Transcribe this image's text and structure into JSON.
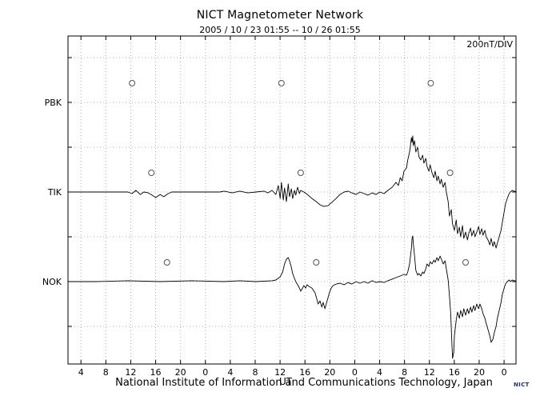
{
  "footer": {
    "credit": "National Institute of Information and Communications Technology, Japan",
    "logo_text": "NICT"
  },
  "chart_data": {
    "type": "line",
    "title": "NICT Magnetometer Network",
    "time_window": "2005 / 10 / 23  01:55 -- 10 / 26  01:55",
    "scale_label": "200nT/DIV",
    "division_nT": 200,
    "units": "nT",
    "grid": "dotted",
    "x_axis": {
      "label": "UT",
      "span_hours": 72,
      "first_tick_hour_offset": 2.083,
      "tick_interval_hours": 4,
      "tick_labels": [
        "4",
        "8",
        "12",
        "16",
        "20",
        "0",
        "4",
        "8",
        "12",
        "16",
        "20",
        "0",
        "4",
        "8",
        "12",
        "16",
        "20",
        "0"
      ]
    },
    "stations": [
      {
        "label": "PBK",
        "circle_marker_hours": [
          10.3,
          34.3,
          58.3
        ],
        "points": []
      },
      {
        "label": "TIK",
        "circle_marker_hours": [
          13.4,
          37.4,
          61.4
        ],
        "points": [
          [
            0,
            0
          ],
          [
            9.6,
            0
          ],
          [
            10.3,
            -7
          ],
          [
            10.9,
            7
          ],
          [
            11.6,
            -11
          ],
          [
            12.2,
            0
          ],
          [
            12.9,
            -4
          ],
          [
            13.5,
            -14
          ],
          [
            14.1,
            -25
          ],
          [
            14.8,
            -11
          ],
          [
            15.4,
            -21
          ],
          [
            16.1,
            -7
          ],
          [
            16.7,
            0
          ],
          [
            24.4,
            0
          ],
          [
            25.1,
            4
          ],
          [
            26.4,
            -4
          ],
          [
            27.6,
            4
          ],
          [
            28.9,
            -4
          ],
          [
            30.2,
            0
          ],
          [
            31.5,
            4
          ],
          [
            32.1,
            -4
          ],
          [
            32.8,
            7
          ],
          [
            33.4,
            -11
          ],
          [
            33.8,
            29
          ],
          [
            34.1,
            -29
          ],
          [
            34.3,
            43
          ],
          [
            34.6,
            -36
          ],
          [
            34.8,
            18
          ],
          [
            35.1,
            -43
          ],
          [
            35.4,
            36
          ],
          [
            35.6,
            -21
          ],
          [
            35.9,
            14
          ],
          [
            36.1,
            -29
          ],
          [
            36.4,
            7
          ],
          [
            36.6,
            -14
          ],
          [
            36.9,
            21
          ],
          [
            37.2,
            -7
          ],
          [
            37.4,
            7
          ],
          [
            37.9,
            0
          ],
          [
            38.6,
            -14
          ],
          [
            39.2,
            -29
          ],
          [
            39.9,
            -43
          ],
          [
            40.5,
            -57
          ],
          [
            41.1,
            -64
          ],
          [
            41.8,
            -61
          ],
          [
            42.4,
            -46
          ],
          [
            43.1,
            -29
          ],
          [
            43.7,
            -11
          ],
          [
            44.4,
            0
          ],
          [
            45,
            4
          ],
          [
            45.6,
            -4
          ],
          [
            46.3,
            -11
          ],
          [
            46.9,
            0
          ],
          [
            47.6,
            -7
          ],
          [
            48.2,
            -14
          ],
          [
            48.9,
            -4
          ],
          [
            49.5,
            -11
          ],
          [
            50.1,
            0
          ],
          [
            50.8,
            -7
          ],
          [
            51.4,
            7
          ],
          [
            52.1,
            21
          ],
          [
            52.7,
            43
          ],
          [
            53.1,
            29
          ],
          [
            53.4,
            64
          ],
          [
            53.7,
            50
          ],
          [
            54,
            93
          ],
          [
            54.4,
            107
          ],
          [
            54.6,
            143
          ],
          [
            54.9,
            179
          ],
          [
            55.2,
            243
          ],
          [
            55.3,
            221
          ],
          [
            55.4,
            250
          ],
          [
            55.5,
            207
          ],
          [
            55.7,
            229
          ],
          [
            55.9,
            179
          ],
          [
            56.2,
            200
          ],
          [
            56.4,
            157
          ],
          [
            56.7,
            143
          ],
          [
            57,
            164
          ],
          [
            57.2,
            129
          ],
          [
            57.5,
            150
          ],
          [
            57.7,
            114
          ],
          [
            58,
            93
          ],
          [
            58.2,
            121
          ],
          [
            58.5,
            86
          ],
          [
            58.8,
            64
          ],
          [
            59,
            93
          ],
          [
            59.3,
            50
          ],
          [
            59.5,
            71
          ],
          [
            59.8,
            36
          ],
          [
            60,
            57
          ],
          [
            60.3,
            21
          ],
          [
            60.6,
            43
          ],
          [
            60.8,
            0
          ],
          [
            61.1,
            -43
          ],
          [
            61.3,
            -107
          ],
          [
            61.6,
            -79
          ],
          [
            61.8,
            -143
          ],
          [
            62.1,
            -171
          ],
          [
            62.4,
            -125
          ],
          [
            62.6,
            -186
          ],
          [
            62.9,
            -157
          ],
          [
            63.1,
            -200
          ],
          [
            63.4,
            -150
          ],
          [
            63.6,
            -207
          ],
          [
            63.9,
            -179
          ],
          [
            64.2,
            -214
          ],
          [
            64.4,
            -186
          ],
          [
            64.7,
            -161
          ],
          [
            64.9,
            -196
          ],
          [
            65.2,
            -171
          ],
          [
            65.4,
            -200
          ],
          [
            65.7,
            -179
          ],
          [
            66,
            -154
          ],
          [
            66.2,
            -189
          ],
          [
            66.5,
            -164
          ],
          [
            66.7,
            -193
          ],
          [
            67,
            -171
          ],
          [
            67.2,
            -200
          ],
          [
            67.5,
            -214
          ],
          [
            67.8,
            -236
          ],
          [
            68,
            -207
          ],
          [
            68.3,
            -243
          ],
          [
            68.5,
            -221
          ],
          [
            68.8,
            -250
          ],
          [
            69,
            -229
          ],
          [
            69.3,
            -200
          ],
          [
            69.6,
            -171
          ],
          [
            69.8,
            -136
          ],
          [
            70.1,
            -89
          ],
          [
            70.3,
            -54
          ],
          [
            70.6,
            -29
          ],
          [
            70.9,
            -7
          ],
          [
            71.1,
            0
          ],
          [
            71.4,
            7
          ],
          [
            71.7,
            4
          ],
          [
            72,
            2
          ]
        ]
      },
      {
        "label": "NOK",
        "circle_marker_hours": [
          15.9,
          39.9,
          63.9
        ],
        "points": [
          [
            0,
            0
          ],
          [
            4.5,
            0
          ],
          [
            9.6,
            4
          ],
          [
            14.8,
            0
          ],
          [
            19.9,
            4
          ],
          [
            25.1,
            0
          ],
          [
            27.6,
            4
          ],
          [
            30.2,
            0
          ],
          [
            32.8,
            4
          ],
          [
            33.4,
            7
          ],
          [
            34.1,
            21
          ],
          [
            34.5,
            43
          ],
          [
            34.8,
            79
          ],
          [
            35.1,
            100
          ],
          [
            35.4,
            107
          ],
          [
            35.6,
            93
          ],
          [
            35.9,
            64
          ],
          [
            36.1,
            36
          ],
          [
            36.4,
            14
          ],
          [
            36.6,
            0
          ],
          [
            36.9,
            -14
          ],
          [
            37.2,
            -29
          ],
          [
            37.4,
            -43
          ],
          [
            37.7,
            -29
          ],
          [
            37.9,
            -18
          ],
          [
            38.2,
            -29
          ],
          [
            38.4,
            -14
          ],
          [
            38.7,
            -21
          ],
          [
            39.2,
            -29
          ],
          [
            39.7,
            -50
          ],
          [
            40,
            -79
          ],
          [
            40.2,
            -100
          ],
          [
            40.5,
            -86
          ],
          [
            40.8,
            -114
          ],
          [
            41,
            -93
          ],
          [
            41.3,
            -121
          ],
          [
            41.5,
            -100
          ],
          [
            41.8,
            -71
          ],
          [
            42,
            -50
          ],
          [
            42.3,
            -29
          ],
          [
            42.6,
            -18
          ],
          [
            43.1,
            -11
          ],
          [
            43.7,
            -7
          ],
          [
            44.4,
            -14
          ],
          [
            45,
            -4
          ],
          [
            45.6,
            -11
          ],
          [
            46.3,
            0
          ],
          [
            46.9,
            -7
          ],
          [
            47.6,
            0
          ],
          [
            48.2,
            -7
          ],
          [
            48.9,
            4
          ],
          [
            49.5,
            -4
          ],
          [
            50.1,
            0
          ],
          [
            50.8,
            -4
          ],
          [
            51.4,
            4
          ],
          [
            52.1,
            11
          ],
          [
            52.7,
            18
          ],
          [
            53.4,
            25
          ],
          [
            54,
            32
          ],
          [
            54.4,
            29
          ],
          [
            54.6,
            43
          ],
          [
            54.9,
            79
          ],
          [
            55.2,
            150
          ],
          [
            55.3,
            193
          ],
          [
            55.4,
            204
          ],
          [
            55.5,
            168
          ],
          [
            55.7,
            114
          ],
          [
            55.9,
            50
          ],
          [
            56.2,
            29
          ],
          [
            56.4,
            36
          ],
          [
            56.7,
            25
          ],
          [
            57,
            43
          ],
          [
            57.2,
            36
          ],
          [
            57.5,
            57
          ],
          [
            57.7,
            79
          ],
          [
            58,
            68
          ],
          [
            58.2,
            89
          ],
          [
            58.5,
            79
          ],
          [
            58.8,
            96
          ],
          [
            59,
            86
          ],
          [
            59.3,
            107
          ],
          [
            59.5,
            93
          ],
          [
            59.8,
            114
          ],
          [
            60,
            100
          ],
          [
            60.3,
            79
          ],
          [
            60.6,
            93
          ],
          [
            60.8,
            57
          ],
          [
            61.1,
            7
          ],
          [
            61.3,
            -64
          ],
          [
            61.5,
            -136
          ],
          [
            61.6,
            -207
          ],
          [
            61.7,
            -279
          ],
          [
            61.8,
            -343
          ],
          [
            62,
            -314
          ],
          [
            62.1,
            -243
          ],
          [
            62.4,
            -171
          ],
          [
            62.6,
            -136
          ],
          [
            62.9,
            -164
          ],
          [
            63.1,
            -129
          ],
          [
            63.4,
            -157
          ],
          [
            63.6,
            -121
          ],
          [
            63.9,
            -150
          ],
          [
            64.2,
            -121
          ],
          [
            64.4,
            -143
          ],
          [
            64.7,
            -114
          ],
          [
            64.9,
            -136
          ],
          [
            65.2,
            -107
          ],
          [
            65.4,
            -129
          ],
          [
            65.7,
            -100
          ],
          [
            66,
            -121
          ],
          [
            66.2,
            -100
          ],
          [
            66.5,
            -121
          ],
          [
            66.7,
            -143
          ],
          [
            67,
            -164
          ],
          [
            67.2,
            -186
          ],
          [
            67.5,
            -214
          ],
          [
            67.8,
            -243
          ],
          [
            68,
            -271
          ],
          [
            68.3,
            -257
          ],
          [
            68.5,
            -229
          ],
          [
            68.8,
            -200
          ],
          [
            69,
            -164
          ],
          [
            69.3,
            -129
          ],
          [
            69.6,
            -93
          ],
          [
            69.8,
            -57
          ],
          [
            70.1,
            -29
          ],
          [
            70.3,
            -11
          ],
          [
            70.6,
            0
          ],
          [
            70.9,
            7
          ],
          [
            71.1,
            0
          ],
          [
            71.4,
            7
          ],
          [
            71.7,
            4
          ],
          [
            72,
            4
          ]
        ]
      }
    ]
  }
}
